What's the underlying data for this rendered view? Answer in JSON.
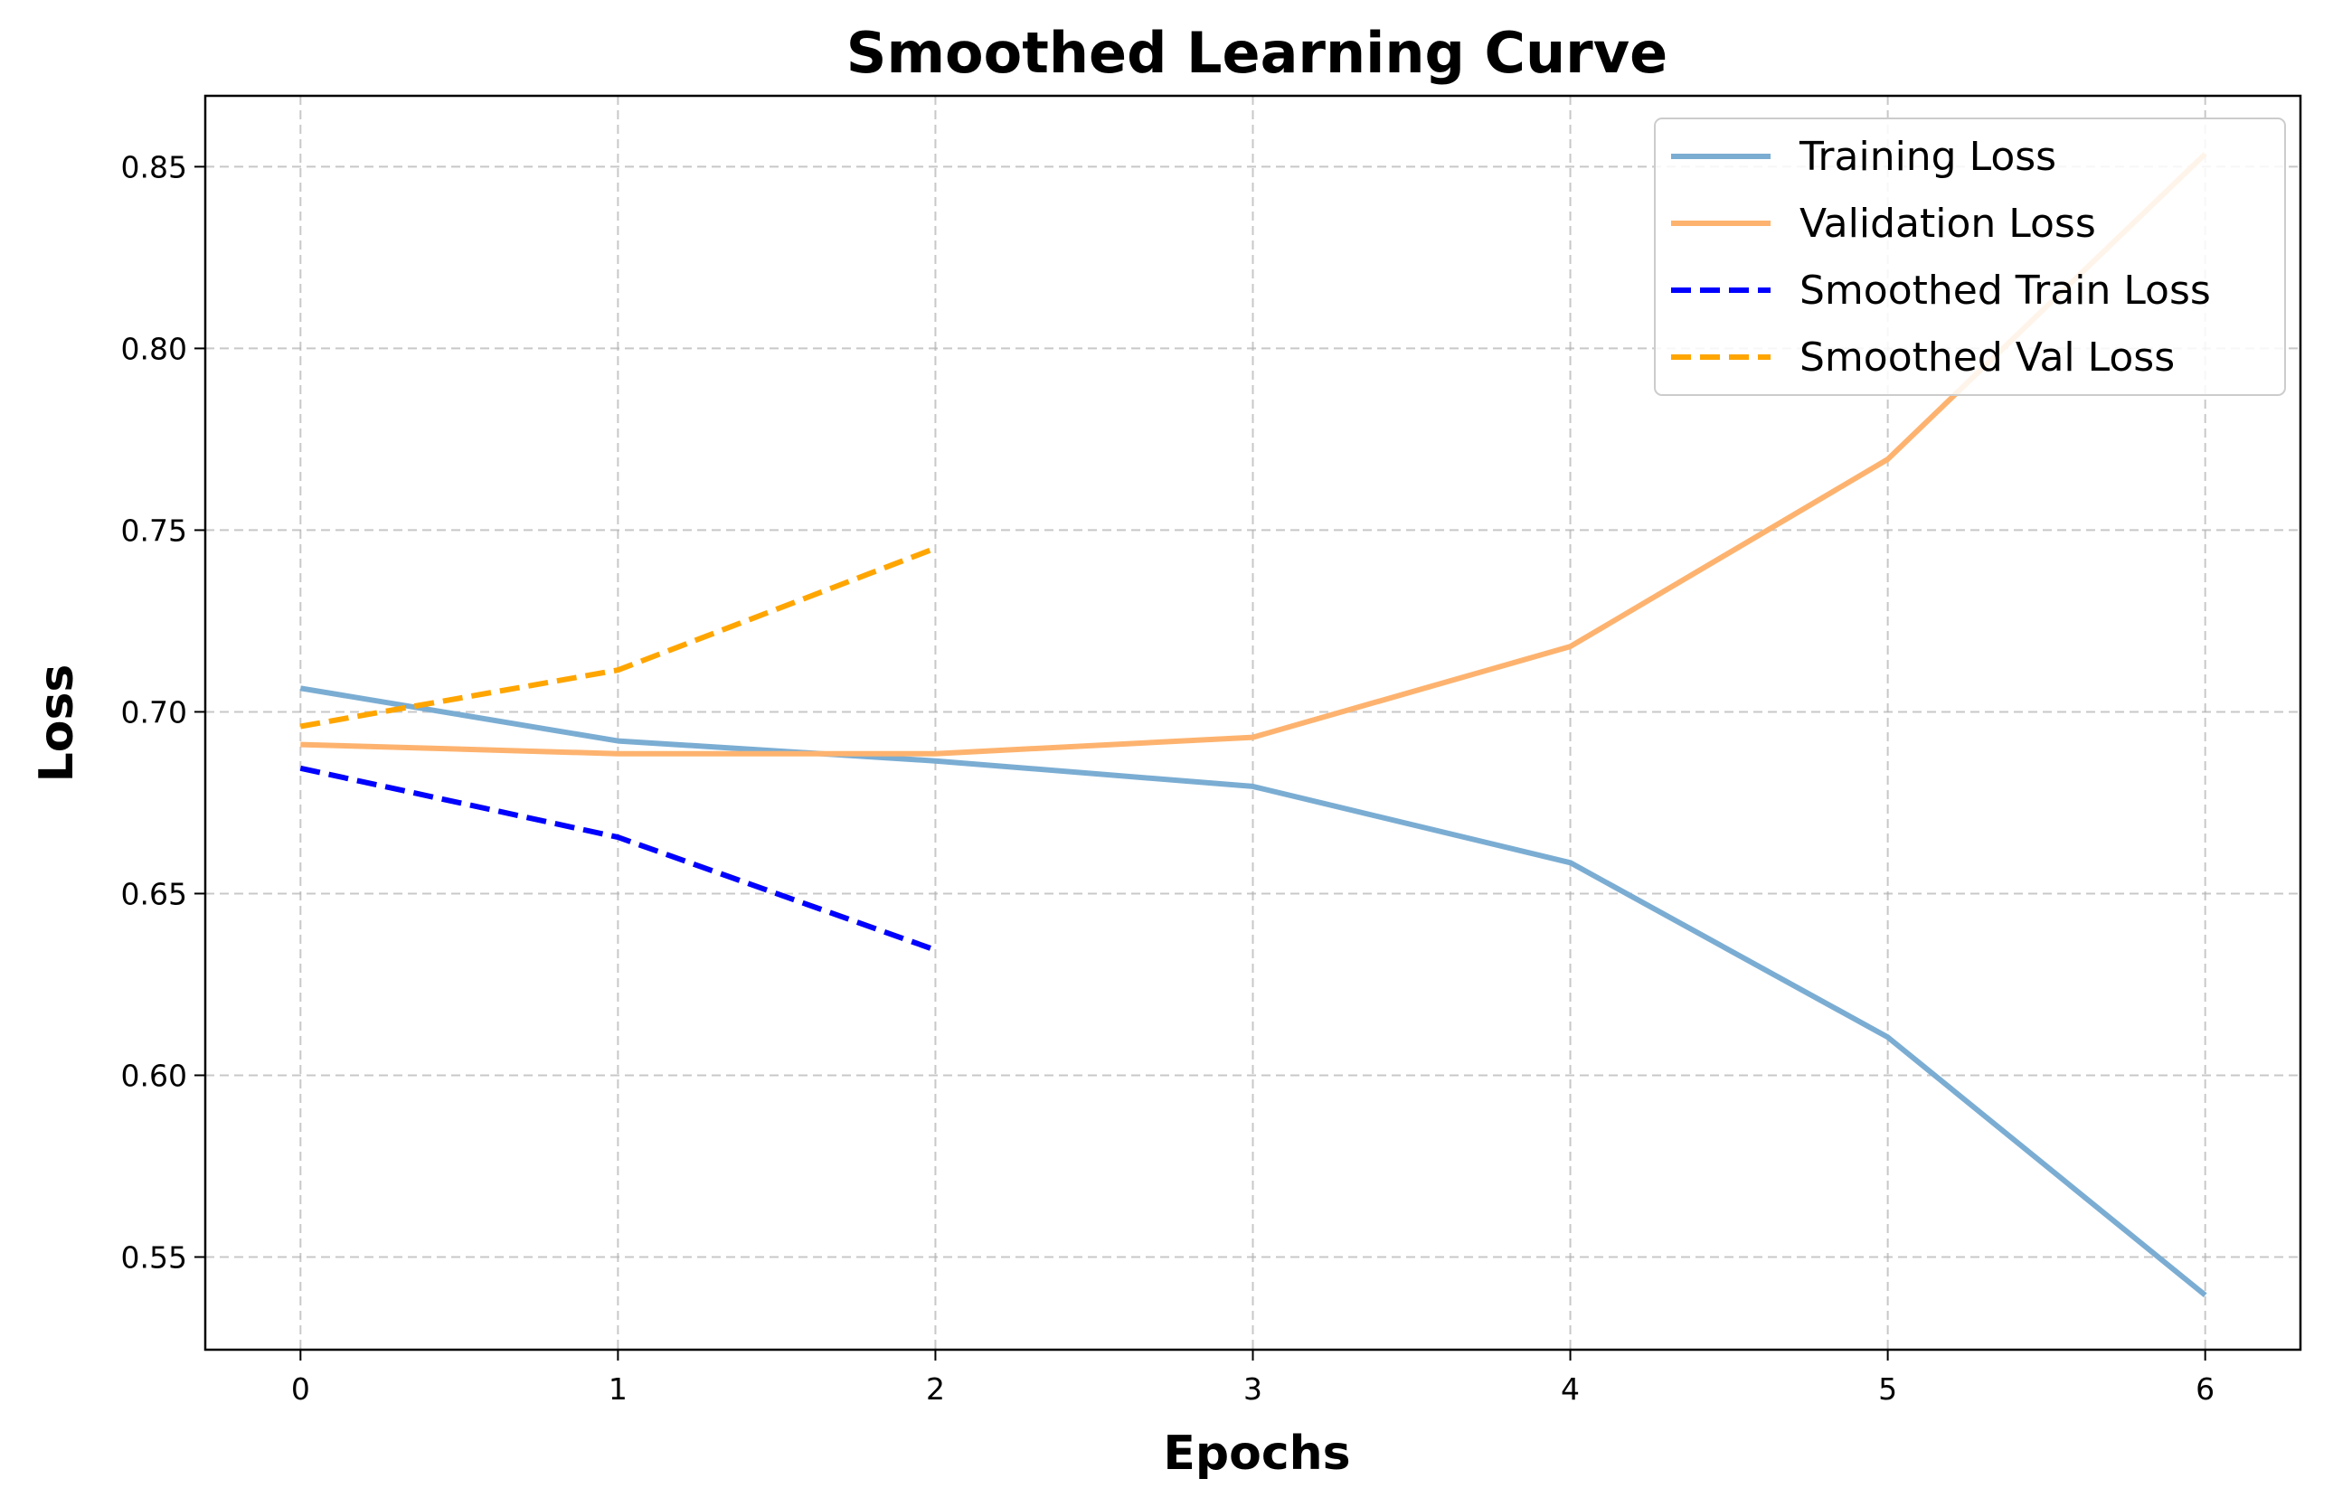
{
  "chart_data": {
    "type": "line",
    "title": "Smoothed Learning Curve",
    "xlabel": "Epochs",
    "ylabel": "Loss",
    "xlim": [
      -0.3,
      6.3
    ],
    "ylim": [
      0.5245,
      0.8695
    ],
    "x_ticks": [
      0,
      1,
      2,
      3,
      4,
      5,
      6
    ],
    "y_ticks": [
      0.55,
      0.6,
      0.65,
      0.7,
      0.75,
      0.8,
      0.85
    ],
    "x_tick_labels": [
      "0",
      "1",
      "2",
      "3",
      "4",
      "5",
      "6"
    ],
    "y_tick_labels": [
      "0.55",
      "0.60",
      "0.65",
      "0.70",
      "0.75",
      "0.80",
      "0.85"
    ],
    "grid": true,
    "legend_position": "top-right",
    "series": [
      {
        "name": "Training Loss",
        "x": [
          0,
          1,
          2,
          3,
          4,
          5,
          6
        ],
        "values": [
          0.7065,
          0.692,
          0.6865,
          0.6795,
          0.6585,
          0.6105,
          0.5395
        ],
        "color": "#7badd3",
        "dash": "solid"
      },
      {
        "name": "Validation Loss",
        "x": [
          0,
          1,
          2,
          3,
          4,
          5,
          6
        ],
        "values": [
          0.691,
          0.6885,
          0.6885,
          0.693,
          0.718,
          0.7695,
          0.8535
        ],
        "color": "#fdb36f",
        "dash": "solid"
      },
      {
        "name": "Smoothed Train Loss",
        "x": [
          0,
          1,
          2
        ],
        "values": [
          0.6845,
          0.6655,
          0.6345
        ],
        "color": "#0000ff",
        "dash": "dashed"
      },
      {
        "name": "Smoothed Val Loss",
        "x": [
          0,
          1,
          2
        ],
        "values": [
          0.696,
          0.7115,
          0.745
        ],
        "color": "#ffa500",
        "dash": "dashed"
      }
    ]
  }
}
